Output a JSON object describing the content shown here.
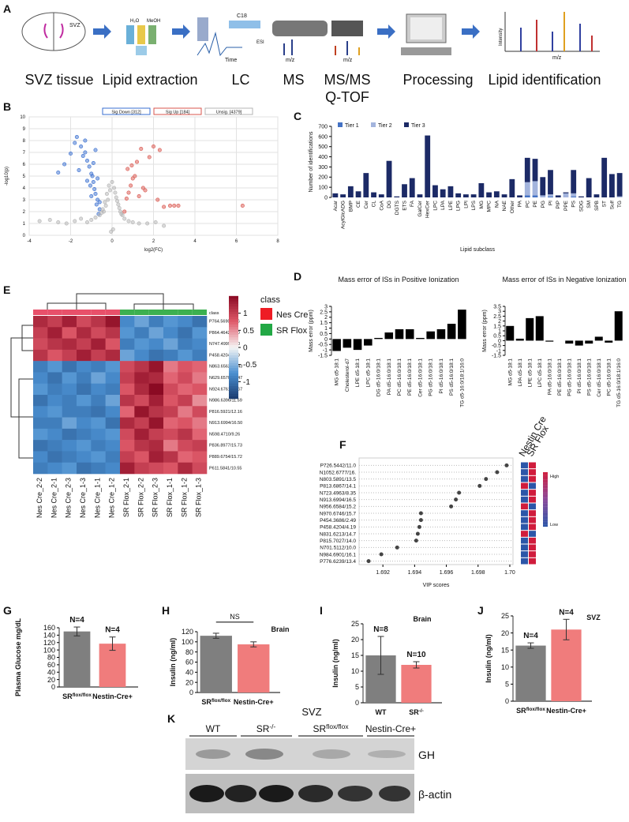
{
  "workflow": {
    "label": "A",
    "steps": [
      [
        "SVZ tissue"
      ],
      [
        "Lipid extraction"
      ],
      [
        "LC"
      ],
      [
        "MS"
      ],
      [
        "MS/MS",
        "Q-TOF"
      ],
      [
        "Processing"
      ],
      [
        "Lipid identification"
      ]
    ],
    "icon_texts": [
      "SVZ",
      "H₂O",
      "MeOH",
      "C18",
      "Time",
      "ESI",
      "m/z",
      "m/z",
      "Intensity",
      "m/z"
    ]
  },
  "chart_data": [
    {
      "type": "scatter",
      "label": "B",
      "xlabel": "log2(FC)",
      "ylabel": "-log10(p)",
      "xlim": [
        -4,
        8
      ],
      "ylim": [
        0,
        10
      ],
      "xticks": [
        -4,
        -2,
        0,
        2,
        4,
        6,
        8
      ],
      "yticks": [
        0,
        1,
        2,
        3,
        4,
        5,
        6,
        7,
        8,
        9,
        10
      ],
      "grid": true,
      "series": [
        {
          "name": "Sig Down [312]",
          "color": "#3a6fd0",
          "x": [
            -0.6,
            -0.7,
            -0.8,
            -0.9,
            -1.0,
            -1.1,
            -1.2,
            -1.3,
            -1.5,
            -1.7,
            -2.0,
            -2.3,
            -0.65,
            -0.75,
            -0.85,
            -0.95,
            -1.05,
            -1.4,
            -1.6,
            -1.8,
            -0.7,
            -0.9,
            -1.2,
            -2.6,
            -0.6,
            -1.0,
            -1.3,
            -0.8
          ],
          "values": [
            2.2,
            3.0,
            3.5,
            4.5,
            5.2,
            5.8,
            6.3,
            7.0,
            7.5,
            8.3,
            6.9,
            6.0,
            1.8,
            2.6,
            3.9,
            5.0,
            4.2,
            6.7,
            5.5,
            7.8,
            4.8,
            6.1,
            4.6,
            5.3,
            2.8,
            3.3,
            8.0,
            7.2
          ]
        },
        {
          "name": "Sig Up [184]",
          "color": "#d9564e",
          "x": [
            0.6,
            0.7,
            0.8,
            0.9,
            1.0,
            1.1,
            1.3,
            1.5,
            1.8,
            2.0,
            2.2,
            2.5,
            2.8,
            3.0,
            3.2,
            0.75,
            0.95,
            1.2,
            1.6,
            2.3,
            6.3,
            1.4
          ],
          "values": [
            2.0,
            3.1,
            3.6,
            4.2,
            4.8,
            5.0,
            3.3,
            4.0,
            6.6,
            7.5,
            3.0,
            2.4,
            2.5,
            2.5,
            2.5,
            5.6,
            5.9,
            6.2,
            3.8,
            7.2,
            2.5,
            7.3
          ]
        },
        {
          "name": "Unsig. [4379]",
          "color": "#b4b4b4",
          "x": [
            -3.5,
            -3.0,
            -2.6,
            -2.2,
            -1.8,
            -1.5,
            -1.2,
            -1.0,
            -0.8,
            -0.6,
            -0.4,
            -0.3,
            -0.2,
            -0.1,
            0,
            0.1,
            0.2,
            0.3,
            0.4,
            0.5,
            0.6,
            0.8,
            1.0,
            1.3,
            1.7,
            2.1,
            2.5,
            -0.5,
            -0.35,
            -0.25,
            -0.15,
            0.15,
            0.25,
            0.35,
            0.45,
            -0.45,
            0.05,
            -0.05
          ],
          "values": [
            1.2,
            1.3,
            1.1,
            1.0,
            1.2,
            1.4,
            1.1,
            1.3,
            1.5,
            1.7,
            2.0,
            2.5,
            3.0,
            3.8,
            4.5,
            4.0,
            3.2,
            2.6,
            2.0,
            1.7,
            1.4,
            1.2,
            1.1,
            1.0,
            1.0,
            1.1,
            0.8,
            1.9,
            2.8,
            3.5,
            4.2,
            3.6,
            2.9,
            2.3,
            1.8,
            2.2,
            0.5,
            0.3
          ]
        }
      ]
    },
    {
      "type": "bar",
      "label": "C",
      "xlabel": "Lipid subclass",
      "ylabel": "Number of identifications",
      "ylim": [
        0,
        700
      ],
      "yticks": [
        0,
        100,
        200,
        300,
        400,
        500,
        600,
        700
      ],
      "categories": [
        "Acar",
        "AcylGlcADG",
        "BMP",
        "CE",
        "Cer",
        "CL",
        "CoA",
        "DG",
        "DGTS",
        "ETS",
        "FA",
        "GalCer",
        "HexCer",
        "LPC",
        "LPA",
        "LPE",
        "LPG",
        "LPI",
        "LPS",
        "MG",
        "MPC",
        "NA",
        "NAE",
        "Other",
        "PA",
        "PC",
        "PE",
        "PG",
        "PI",
        "PIP",
        "PPE",
        "PS",
        "SDG",
        "SM",
        "SPB",
        "ST",
        "Sulf",
        "TG"
      ],
      "series": [
        {
          "name": "Tier 1",
          "color": "#4472c4",
          "values": [
            0,
            0,
            0,
            0,
            0,
            0,
            0,
            0,
            0,
            0,
            0,
            0,
            0,
            0,
            0,
            0,
            0,
            0,
            0,
            0,
            0,
            0,
            0,
            0,
            0,
            20,
            20,
            0,
            10,
            0,
            0,
            10,
            0,
            0,
            0,
            0,
            0,
            0
          ]
        },
        {
          "name": "Tier 2",
          "color": "#a3b4dd",
          "values": [
            0,
            0,
            0,
            0,
            0,
            0,
            0,
            0,
            0,
            0,
            0,
            0,
            0,
            0,
            0,
            0,
            0,
            0,
            0,
            0,
            0,
            0,
            0,
            0,
            0,
            130,
            140,
            20,
            20,
            0,
            40,
            30,
            0,
            0,
            0,
            0,
            0,
            10
          ]
        },
        {
          "name": "Tier 3",
          "color": "#1c2a66",
          "values": [
            40,
            30,
            110,
            60,
            240,
            50,
            30,
            360,
            10,
            130,
            190,
            30,
            610,
            120,
            80,
            110,
            40,
            30,
            30,
            140,
            50,
            60,
            30,
            180,
            20,
            240,
            220,
            180,
            240,
            20,
            10,
            230,
            10,
            190,
            30,
            390,
            230,
            230
          ]
        }
      ]
    },
    {
      "type": "bar",
      "label": "D",
      "title": "Mass error of ISs in Positive Ionization",
      "ylabel": "Mass error (ppm)",
      "ylim": [
        -1.5,
        3
      ],
      "yticks": [
        -1.5,
        -1,
        -0.5,
        0,
        0.5,
        1,
        1.5,
        2,
        2.5,
        3
      ],
      "color": "#000000",
      "categories": [
        "MG d5-18:1",
        "Cholesterol-d7",
        "LPE d5-18:1",
        "LPC d5-18:1",
        "DG d5-16:0/18:1",
        "PA d5-16:0/18:1",
        "PC d5-16:0/18:1",
        "PE d5-16:0/18:1",
        "Cer d5-16:0/18:1",
        "PG d5-16:0/18:1",
        "PI d5-16:0/18:1",
        "PS d5-16:0/18:1",
        "TG d5-16:0/18:1/16:0"
      ],
      "values": [
        -1.1,
        -0.8,
        -1.0,
        -0.6,
        0.1,
        0.6,
        0.9,
        0.9,
        0.1,
        0.7,
        0.9,
        1.4,
        2.7
      ]
    },
    {
      "type": "bar",
      "title": "Mass error of ISs in Negative Ionization",
      "ylabel": "Mass error (ppm)",
      "ylim": [
        -1.5,
        3.5
      ],
      "yticks": [
        -1.5,
        -1,
        -0.5,
        0,
        0.5,
        1,
        1.5,
        2,
        2.5,
        3,
        3.5
      ],
      "color": "#000000",
      "categories": [
        "MG d5-18:1",
        "LPA d5-18:1",
        "LPE d5-18:1",
        "LPC d5-18:1",
        "PA d5-16:0/18:1",
        "PE d5-16:0/18:1",
        "PG d5-16:0/18:1",
        "PI d5-16:0/18:1",
        "PS d5-16:0/18:1",
        "Cer d5-16:0/18:1",
        "PC d5-16:0/18:1",
        "TG d5-16:0/18:1/16:0"
      ],
      "values": [
        1.5,
        0.2,
        2.3,
        2.5,
        -0.1,
        0,
        -0.3,
        -0.5,
        -0.3,
        0.4,
        -0.2,
        3.0
      ]
    },
    {
      "type": "heatmap",
      "label": "E",
      "class_label": "class",
      "legend_title": "class",
      "classes": [
        {
          "name": "Nes Cre",
          "color": "#ee1c24",
          "band_color": "#e8506a",
          "columns": 6
        },
        {
          "name": "SR Flox",
          "color": "#22a845",
          "band_color": "#3cb050",
          "columns": 6
        }
      ],
      "columns": [
        "Nes Cre_2-2",
        "Nes Cre_2-1",
        "Nes Cre_2-3",
        "Nes Cre_1-3",
        "Nes Cre_1-1",
        "Nes Cre_1-2",
        "SR Flox_2-1",
        "SR Flox_2-2",
        "SR Flox_2-3",
        "SR Flox_1-1",
        "SR Flox_1-2",
        "SR Flox_1-3"
      ],
      "rows": [
        "P764.5690/9.56",
        "P864.4642/4.20",
        "N747.4999/7.80",
        "P458.4204/4.19",
        "N863.6562/13.43",
        "N629.6570/13.47",
        "N924.6761/14.67",
        "N986.6396/11.59",
        "P816.5921/12.16",
        "N913.6994/16.50",
        "N598.4710/9.26",
        "P836.8977/15.73",
        "P889.6754/15.72",
        "P611.5841/10.55"
      ],
      "values": [
        [
          1.2,
          1.0,
          1.3,
          0.9,
          1.1,
          1.4,
          -0.8,
          -0.6,
          -0.9,
          -0.7,
          -0.8,
          -1.0
        ],
        [
          1.0,
          1.3,
          0.8,
          1.2,
          0.9,
          1.1,
          -0.7,
          -0.9,
          -0.6,
          -0.8,
          -1.0,
          -0.7
        ],
        [
          0.9,
          1.1,
          1.2,
          1.0,
          1.3,
          0.8,
          -0.9,
          -0.7,
          -0.8,
          -0.6,
          -0.9,
          -0.8
        ],
        [
          1.1,
          0.8,
          1.0,
          1.3,
          1.0,
          1.2,
          -0.6,
          -0.8,
          -1.0,
          -0.9,
          -0.7,
          -0.9
        ],
        [
          -0.9,
          -0.7,
          -1.0,
          -0.8,
          -0.9,
          -0.7,
          0.9,
          1.1,
          1.4,
          0.6,
          0.8,
          0.7
        ],
        [
          -0.8,
          -1.0,
          -0.7,
          -0.9,
          -0.6,
          -0.8,
          1.0,
          1.3,
          1.2,
          0.7,
          0.9,
          0.6
        ],
        [
          -0.7,
          -0.9,
          -0.8,
          -1.0,
          -0.8,
          -0.9,
          0.8,
          1.2,
          1.5,
          0.9,
          0.7,
          0.8
        ],
        [
          -1.0,
          -0.8,
          -0.9,
          -0.7,
          -0.9,
          -0.6,
          1.1,
          0.9,
          1.3,
          0.8,
          1.0,
          0.5
        ],
        [
          -0.8,
          -0.7,
          -0.9,
          -0.9,
          -1.0,
          -0.8,
          0.7,
          1.4,
          1.1,
          1.0,
          0.6,
          0.9
        ],
        [
          -0.9,
          -0.9,
          -0.6,
          -0.8,
          -0.7,
          -1.0,
          1.2,
          1.0,
          1.4,
          0.7,
          0.8,
          0.6
        ],
        [
          -0.7,
          -0.8,
          -1.0,
          -0.9,
          -0.8,
          -0.7,
          0.9,
          1.3,
          1.0,
          0.9,
          1.1,
          0.7
        ],
        [
          -1.0,
          -0.9,
          -0.8,
          -0.7,
          -0.9,
          -0.8,
          0.8,
          1.1,
          1.2,
          0.6,
          0.9,
          1.0
        ],
        [
          -0.8,
          -1.0,
          -0.9,
          -0.8,
          -0.7,
          -0.9,
          1.0,
          0.8,
          1.3,
          1.1,
          0.7,
          0.8
        ],
        [
          -0.9,
          -0.8,
          -0.7,
          -1.0,
          -0.9,
          -0.8,
          1.3,
          1.0,
          0.9,
          0.8,
          1.2,
          0.9
        ]
      ],
      "colorscale": [
        "#1a3a6e",
        "#4a8fd0",
        "#f5f5f5",
        "#e05a6a",
        "#8b0a23"
      ],
      "clim": [
        -1.5,
        1.5
      ],
      "cticks": [
        1,
        0.5,
        0,
        -0.5,
        -1
      ]
    },
    {
      "type": "dot",
      "label": "F",
      "xlabel": "VIP scores",
      "xlim": [
        1.6905,
        1.7002
      ],
      "xticks": [
        1.692,
        1.694,
        1.696,
        1.698,
        {
          "value": 1.7,
          "label": "1.70"
        }
      ],
      "color": "#444444",
      "categories": [
        "P726.5442/11.0",
        "N1052.6777/16.",
        "N803.5891/13.5",
        "P813.6867/14.1",
        "N723.4963/8.35",
        "N913.6994/16.5",
        "N956.6584/15.2",
        "N970.6746/15.7",
        "P454.3686/2.49",
        "P458.4204/4.19",
        "N831.6213/14.7",
        "P815.7027/14.0",
        "N701.5112/10.0",
        "N984.6901/16.1",
        "P776.6239/13.4"
      ],
      "values": [
        1.6998,
        1.6992,
        1.6985,
        1.6981,
        1.6968,
        1.6966,
        1.6963,
        1.6944,
        1.6944,
        1.6943,
        1.6942,
        1.6941,
        1.6929,
        1.6919,
        1.6911
      ],
      "groups": [
        "Nestin Cre",
        "SR Flox"
      ],
      "heat": [
        [
          -1,
          1
        ],
        [
          -1,
          1
        ],
        [
          -1,
          1
        ],
        [
          1,
          -1
        ],
        [
          -1,
          1
        ],
        [
          -1,
          1
        ],
        [
          1,
          -1
        ],
        [
          -1,
          1
        ],
        [
          -1,
          1
        ],
        [
          -1,
          1
        ],
        [
          1,
          -1
        ],
        [
          -1,
          1
        ],
        [
          -1,
          1
        ],
        [
          -1,
          1
        ],
        [
          -1,
          1
        ]
      ],
      "colorscale": [
        "#2c56a8",
        "#8a4a9a",
        "#d01c3c"
      ],
      "clim": [
        -1,
        1
      ],
      "color_high": "High",
      "color_low": "Low"
    },
    {
      "type": "bar",
      "label": "G",
      "ylabel": "Plasma Glucose mg/dL",
      "ylim": [
        0,
        160
      ],
      "yticks": [
        0,
        20,
        40,
        60,
        80,
        100,
        120,
        140,
        160
      ],
      "categories": [
        {
          "base": "SR",
          "sup": "flox/flox"
        },
        "Nestin-Cre+"
      ],
      "values": [
        150,
        117
      ],
      "errors": [
        12,
        18
      ],
      "colors": [
        "#7f7f7f",
        "#f07c7c"
      ],
      "annotations": [
        "N=4",
        "N=4"
      ]
    },
    {
      "type": "bar",
      "label": "H",
      "ylabel": "Insulin (ng/ml)",
      "note": "Brain",
      "bracket": "NS",
      "ylim": [
        0,
        120
      ],
      "yticks": [
        0,
        20,
        40,
        60,
        80,
        100,
        120
      ],
      "categories": [
        {
          "base": "SR",
          "sup": "flox/flox"
        },
        "Nestin-Cre+"
      ],
      "values": [
        112,
        95
      ],
      "errors": [
        5,
        5
      ],
      "colors": [
        "#7f7f7f",
        "#f07c7c"
      ]
    },
    {
      "type": "bar",
      "label": "I",
      "ylabel": "Insulin (ng/ml)",
      "note": "Brain",
      "ylim": [
        0,
        25
      ],
      "yticks": [
        0,
        5,
        10,
        15,
        20,
        25
      ],
      "categories": [
        "WT",
        {
          "base": "SR",
          "sup": "-/-"
        }
      ],
      "values": [
        15,
        12
      ],
      "errors": [
        6,
        1
      ],
      "colors": [
        "#7f7f7f",
        "#f07c7c"
      ],
      "annotations": [
        "N=8",
        "N=10"
      ]
    },
    {
      "type": "bar",
      "label": "J",
      "ylabel": "Insulin (ng/ml)",
      "note": "SVZ",
      "ylim": [
        0,
        25
      ],
      "yticks": [
        0,
        5,
        10,
        15,
        20,
        25
      ],
      "categories": [
        {
          "base": "SR",
          "sup": "flox/flox"
        },
        "Nestin-Cre+"
      ],
      "values": [
        16.3,
        21
      ],
      "errors": [
        0.8,
        3
      ],
      "colors": [
        "#7f7f7f",
        "#f07c7c"
      ],
      "annotations": [
        "N=4",
        "N=4"
      ]
    }
  ],
  "blot": {
    "label": "K",
    "title": "SVZ",
    "lanes": [
      "WT",
      {
        "base": "SR",
        "sup": "-/-"
      },
      {
        "base": "SR",
        "sup": "flox/flox"
      },
      "Nestin-Cre+"
    ],
    "bands": [
      "GH",
      "β-actin"
    ]
  }
}
